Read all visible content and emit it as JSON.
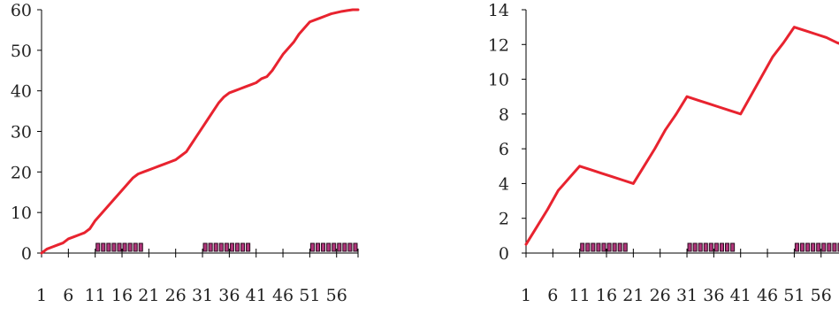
{
  "chart_data": [
    {
      "type": "line",
      "title": "",
      "xlabel": "",
      "ylabel": "",
      "xlim": [
        1,
        60
      ],
      "ylim": [
        0,
        60
      ],
      "grid": false,
      "x_tick_labels": [
        "1",
        "6",
        "11",
        "16",
        "21",
        "26",
        "31",
        "36",
        "41",
        "46",
        "51",
        "56"
      ],
      "y_tick_labels": [
        "0",
        "10",
        "20",
        "30",
        "40",
        "50",
        "60"
      ],
      "x": [
        1,
        2,
        3,
        4,
        5,
        6,
        7,
        8,
        9,
        10,
        11,
        12,
        13,
        14,
        15,
        16,
        17,
        18,
        19,
        20,
        21,
        22,
        23,
        24,
        25,
        26,
        27,
        28,
        29,
        30,
        31,
        32,
        33,
        34,
        35,
        36,
        37,
        38,
        39,
        40,
        41,
        42,
        43,
        44,
        45,
        46,
        47,
        48,
        49,
        50,
        51,
        52,
        53,
        54,
        55,
        56,
        57,
        58,
        59,
        60
      ],
      "series": [
        {
          "color": "#e8232f",
          "values": [
            0,
            1,
            1.5,
            2,
            2.5,
            3.5,
            4,
            4.5,
            5,
            6,
            8,
            9.5,
            11,
            12.5,
            14,
            15.5,
            17,
            18.5,
            19.5,
            20,
            20.5,
            21,
            21.5,
            22,
            22.5,
            23,
            24,
            25,
            27,
            29,
            31,
            33,
            35,
            37,
            38.5,
            39.5,
            40,
            40.5,
            41,
            41.5,
            42,
            43,
            43.5,
            45,
            47,
            49,
            50.5,
            52,
            54,
            55.5,
            57,
            57.5,
            58,
            58.5,
            59,
            59.3,
            59.6,
            59.8,
            60,
            60
          ]
        }
      ],
      "shaded_markers": [
        [
          11,
          20
        ],
        [
          31,
          40
        ],
        [
          51,
          60
        ]
      ],
      "marker_color": "#b0357a"
    },
    {
      "type": "line",
      "title": "",
      "xlabel": "",
      "ylabel": "",
      "xlim": [
        1,
        60
      ],
      "ylim": [
        0,
        14
      ],
      "grid": false,
      "x_tick_labels": [
        "1",
        "6",
        "11",
        "16",
        "21",
        "26",
        "31",
        "36",
        "41",
        "46",
        "51",
        "56"
      ],
      "y_tick_labels": [
        "0",
        "2",
        "4",
        "6",
        "8",
        "10",
        "12",
        "14"
      ],
      "x": [
        1,
        3,
        5,
        7,
        9,
        11,
        13,
        15,
        17,
        19,
        21,
        23,
        25,
        27,
        29,
        31,
        33,
        35,
        37,
        39,
        41,
        43,
        45,
        47,
        49,
        51,
        53,
        55,
        57,
        59,
        60
      ],
      "series": [
        {
          "color": "#e8232f",
          "values": [
            0.5,
            1.5,
            2.5,
            3.6,
            4.3,
            5,
            4.8,
            4.6,
            4.4,
            4.2,
            4,
            5,
            6,
            7.1,
            8,
            9,
            8.8,
            8.6,
            8.4,
            8.2,
            8,
            9.1,
            10.2,
            11.3,
            12.1,
            13,
            12.8,
            12.6,
            12.4,
            12.1,
            12
          ]
        }
      ],
      "shaded_markers": [
        [
          11,
          20
        ],
        [
          31,
          40
        ],
        [
          51,
          60
        ]
      ],
      "marker_color": "#b0357a"
    }
  ]
}
